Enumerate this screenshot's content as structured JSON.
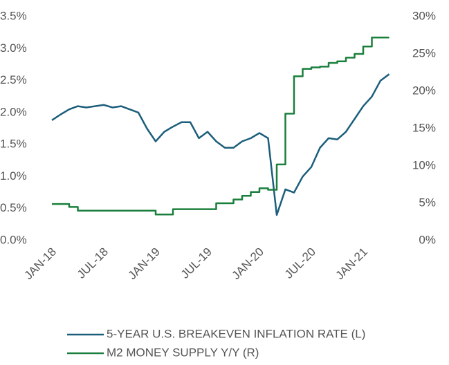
{
  "chart_data": {
    "type": "line",
    "x": [
      "2018-01",
      "2018-02",
      "2018-03",
      "2018-04",
      "2018-05",
      "2018-06",
      "2018-07",
      "2018-08",
      "2018-09",
      "2018-10",
      "2018-11",
      "2018-12",
      "2019-01",
      "2019-02",
      "2019-03",
      "2019-04",
      "2019-05",
      "2019-06",
      "2019-07",
      "2019-08",
      "2019-09",
      "2019-10",
      "2019-11",
      "2019-12",
      "2020-01",
      "2020-02",
      "2020-03",
      "2020-04",
      "2020-05",
      "2020-06",
      "2020-07",
      "2020-08",
      "2020-09",
      "2020-10",
      "2020-11",
      "2020-12",
      "2021-01",
      "2021-02",
      "2021-03",
      "2021-04"
    ],
    "xlim": [
      "2018-01",
      "2021-05"
    ],
    "xticks": [
      {
        "value": "2018-01",
        "label": "JAN-18"
      },
      {
        "value": "2018-07",
        "label": "JUL-18"
      },
      {
        "value": "2019-01",
        "label": "JAN-19"
      },
      {
        "value": "2019-07",
        "label": "JUL-19"
      },
      {
        "value": "2020-01",
        "label": "JAN-20"
      },
      {
        "value": "2020-07",
        "label": "JUL-20"
      },
      {
        "value": "2021-01",
        "label": "JAN-21"
      }
    ],
    "ylim": [
      0,
      3.5
    ],
    "yticks": [
      {
        "value": 0,
        "label": "0.0%"
      },
      {
        "value": 0.5,
        "label": "0.5%"
      },
      {
        "value": 1,
        "label": "1.0%"
      },
      {
        "value": 1.5,
        "label": "1.5%"
      },
      {
        "value": 2,
        "label": "2.0%"
      },
      {
        "value": 2.5,
        "label": "2.5%"
      },
      {
        "value": 3,
        "label": "3.0%"
      },
      {
        "value": 3.5,
        "label": "3.5%"
      }
    ],
    "y2lim": [
      0,
      30
    ],
    "y2ticks": [
      {
        "value": 0,
        "label": "0%"
      },
      {
        "value": 5,
        "label": "5%"
      },
      {
        "value": 10,
        "label": "10%"
      },
      {
        "value": 15,
        "label": "15%"
      },
      {
        "value": 20,
        "label": "20%"
      },
      {
        "value": 25,
        "label": "25%"
      },
      {
        "value": 30,
        "label": "30%"
      }
    ],
    "series": [
      {
        "name": "5-YEAR U.S. BREAKEVEN INFLATION RATE (L)",
        "color": "#1b5e7b",
        "axis": "y",
        "values": [
          1.88,
          1.97,
          2.05,
          2.1,
          2.08,
          2.1,
          2.12,
          2.08,
          2.1,
          2.05,
          2.0,
          1.75,
          1.55,
          1.7,
          1.78,
          1.85,
          1.85,
          1.6,
          1.7,
          1.55,
          1.45,
          1.45,
          1.55,
          1.6,
          1.68,
          1.6,
          0.4,
          0.8,
          0.75,
          1.0,
          1.15,
          1.45,
          1.6,
          1.58,
          1.7,
          1.9,
          2.1,
          2.25,
          2.5,
          2.6
        ]
      },
      {
        "name": "M2 MONEY SUPPLY Y/Y (R)",
        "color": "#1a7f3c",
        "axis": "y2",
        "line_style": "step",
        "values": [
          4.9,
          4.9,
          4.5,
          4,
          4,
          4,
          4,
          4,
          4,
          4,
          4,
          4,
          3.5,
          3.5,
          4.2,
          4.2,
          4.2,
          4.2,
          4.2,
          5,
          5,
          5.5,
          6,
          6.5,
          7,
          6.8,
          10.2,
          17,
          22,
          23,
          23.2,
          23.3,
          23.8,
          24,
          24.5,
          25,
          26,
          27.2,
          27.2,
          27.2
        ]
      }
    ]
  }
}
